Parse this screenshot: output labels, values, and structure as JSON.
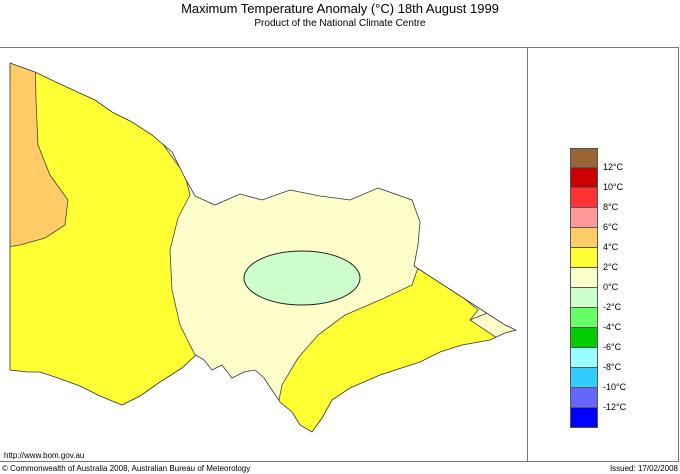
{
  "title": "Maximum Temperature Anomaly (°C)  18th August 1999",
  "subtitle": "Product of the National Climate Centre",
  "url": "http://www.bom.gov.au",
  "copyright": "© Commonwealth of Australia 2008, Australian Bureau of Meteorology",
  "issued": "Issued: 17/02/2008",
  "legend": {
    "colors": [
      "#996633",
      "#cc0000",
      "#ff3333",
      "#ff9999",
      "#ffcc66",
      "#ffff33",
      "#ffffcc",
      "#ccffcc",
      "#66ff66",
      "#00cc00",
      "#99ffff",
      "#33ccff",
      "#6666ff",
      "#0000ff"
    ],
    "labels": [
      "12°C",
      "10°C",
      "8°C",
      "6°C",
      "4°C",
      "2°C",
      "0°C",
      "-2°C",
      "-4°C",
      "-6°C",
      "-8°C",
      "-10°C",
      "-12°C"
    ]
  }
}
